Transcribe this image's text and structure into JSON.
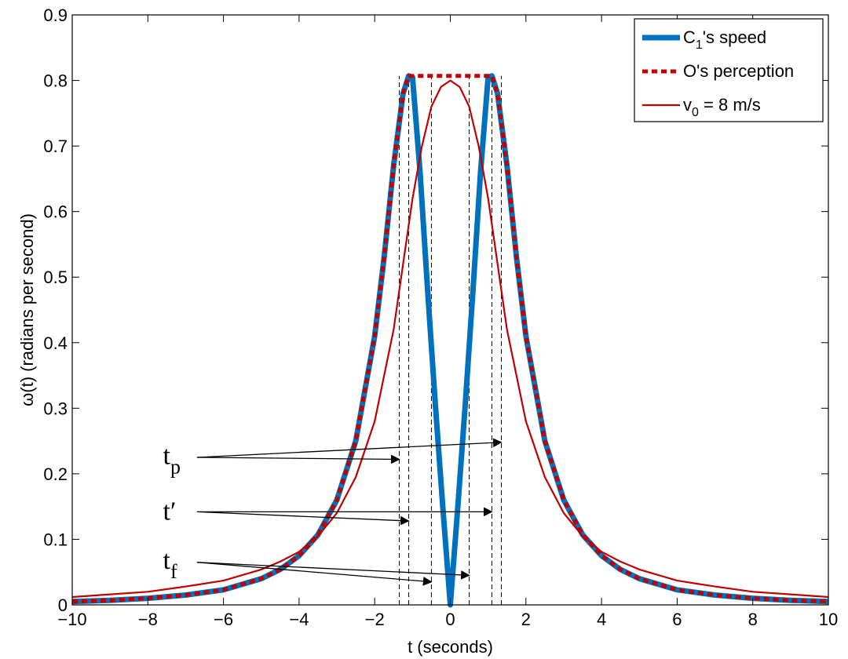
{
  "chart_data": {
    "type": "line",
    "title": "",
    "xlabel": "t (seconds)",
    "ylabel": "ω(t) (radians per second)",
    "xlim": [
      -10,
      10
    ],
    "ylim": [
      0,
      0.9
    ],
    "xticks": [
      -10,
      -8,
      -6,
      -4,
      -2,
      0,
      2,
      4,
      6,
      8,
      10
    ],
    "yticks": [
      0,
      0.1,
      0.2,
      0.3,
      0.4,
      0.5,
      0.6,
      0.7,
      0.8,
      0.9
    ],
    "xtick_labels": [
      "−10",
      "−8",
      "−6",
      "−4",
      "−2",
      "0",
      "2",
      "4",
      "6",
      "8",
      "10"
    ],
    "ytick_labels": [
      "0",
      "0.1",
      "0.2",
      "0.3",
      "0.4",
      "0.5",
      "0.6",
      "0.7",
      "0.8",
      "0.9"
    ],
    "grid": false,
    "legend_position": "top-right",
    "series": [
      {
        "name": "C1's speed",
        "legend_label": {
          "main": "C",
          "sub": "1",
          "rest": "'s speed"
        },
        "color": "#0072BD",
        "style": "solid-thick",
        "x": [
          -10,
          -9,
          -8,
          -7,
          -6,
          -5,
          -4.5,
          -4,
          -3.5,
          -3,
          -2.5,
          -2,
          -1.75,
          -1.5,
          -1.25,
          -1.1,
          -1.0,
          -0.8,
          -0.6,
          -0.4,
          -0.2,
          0,
          0.2,
          0.4,
          0.6,
          0.8,
          1.0,
          1.1,
          1.25,
          1.5,
          1.75,
          2,
          2.5,
          3,
          3.5,
          4,
          4.5,
          5,
          6,
          7,
          8,
          9,
          10
        ],
        "y": [
          0.005,
          0.007,
          0.01,
          0.015,
          0.023,
          0.04,
          0.054,
          0.075,
          0.107,
          0.16,
          0.25,
          0.41,
          0.53,
          0.67,
          0.78,
          0.807,
          0.805,
          0.66,
          0.48,
          0.31,
          0.15,
          0,
          0.15,
          0.31,
          0.48,
          0.66,
          0.805,
          0.807,
          0.78,
          0.67,
          0.53,
          0.41,
          0.25,
          0.16,
          0.107,
          0.075,
          0.054,
          0.04,
          0.023,
          0.015,
          0.01,
          0.007,
          0.005
        ]
      },
      {
        "name": "O's perception",
        "legend_label": {
          "main": "O's perception",
          "sub": "",
          "rest": ""
        },
        "color": "#C00000",
        "style": "dotted-thick",
        "x": [
          -10,
          -9,
          -8,
          -7,
          -6,
          -5,
          -4.5,
          -4,
          -3.5,
          -3,
          -2.5,
          -2,
          -1.75,
          -1.5,
          -1.25,
          -1.1,
          1.1,
          1.25,
          1.5,
          1.75,
          2,
          2.5,
          3,
          3.5,
          4,
          4.5,
          5,
          6,
          7,
          8,
          9,
          10
        ],
        "y": [
          0.005,
          0.007,
          0.01,
          0.015,
          0.023,
          0.04,
          0.054,
          0.075,
          0.107,
          0.16,
          0.25,
          0.41,
          0.53,
          0.67,
          0.78,
          0.807,
          0.807,
          0.78,
          0.67,
          0.53,
          0.41,
          0.25,
          0.16,
          0.107,
          0.075,
          0.054,
          0.04,
          0.023,
          0.015,
          0.01,
          0.007,
          0.005
        ]
      },
      {
        "name": "v0 = 8 m/s",
        "legend_label": {
          "main": "v",
          "sub": "0",
          "rest": " = 8 m/s"
        },
        "color": "#C00000",
        "style": "solid-thin",
        "x": [
          -10,
          -9,
          -8,
          -7,
          -6,
          -5,
          -4.5,
          -4,
          -3.5,
          -3,
          -2.5,
          -2,
          -1.5,
          -1,
          -0.75,
          -0.5,
          -0.25,
          0,
          0.25,
          0.5,
          0.75,
          1,
          1.5,
          2,
          2.5,
          3,
          3.5,
          4,
          4.5,
          5,
          6,
          7,
          8,
          9,
          10
        ],
        "y": [
          0.012,
          0.016,
          0.02,
          0.028,
          0.037,
          0.054,
          0.066,
          0.081,
          0.105,
          0.14,
          0.195,
          0.28,
          0.42,
          0.62,
          0.7,
          0.76,
          0.79,
          0.8,
          0.79,
          0.76,
          0.7,
          0.62,
          0.42,
          0.28,
          0.195,
          0.14,
          0.105,
          0.081,
          0.066,
          0.054,
          0.037,
          0.028,
          0.02,
          0.016,
          0.012
        ]
      }
    ],
    "vertical_markers": {
      "x": [
        -1.35,
        -1.1,
        -0.5,
        0.5,
        1.1,
        1.35
      ],
      "y_top": 0.807
    },
    "annotations": [
      {
        "main": "t",
        "sub": "p",
        "text_x": -7.6,
        "text_y": 0.215,
        "anchor": [
          -6.7,
          0.225
        ],
        "targets": [
          [
            -1.35,
            0.222
          ],
          [
            1.35,
            0.248
          ]
        ]
      },
      {
        "main": "t′",
        "sub": "",
        "text_x": -7.6,
        "text_y": 0.13,
        "anchor": [
          -6.7,
          0.142
        ],
        "targets": [
          [
            -1.1,
            0.128
          ],
          [
            1.1,
            0.142
          ]
        ]
      },
      {
        "main": "t",
        "sub": "f",
        "text_x": -7.6,
        "text_y": 0.055,
        "anchor": [
          -6.7,
          0.065
        ],
        "targets": [
          [
            -0.5,
            0.035
          ],
          [
            0.5,
            0.045
          ]
        ]
      }
    ]
  }
}
